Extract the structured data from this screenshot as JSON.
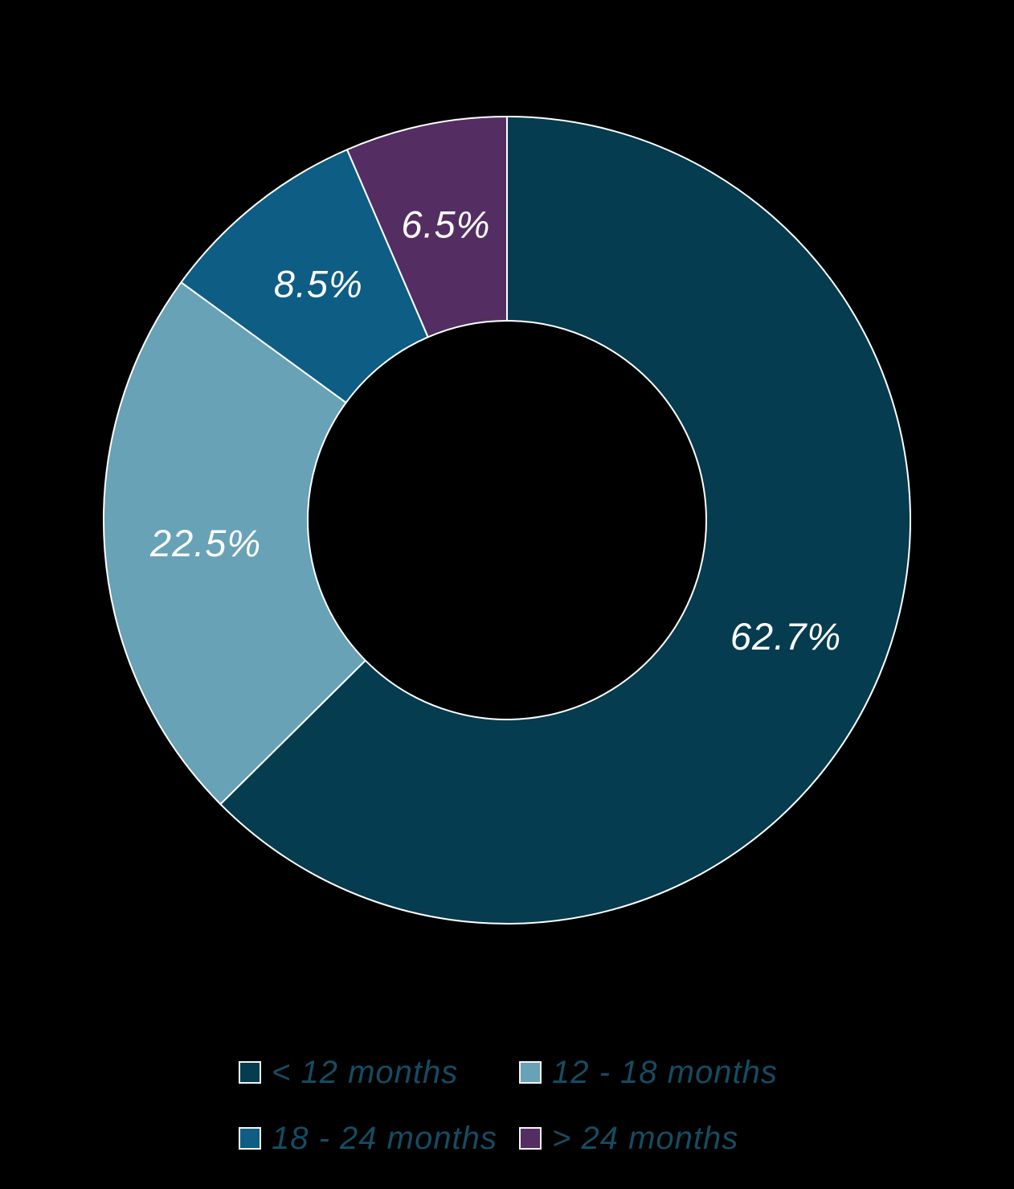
{
  "chart_data": {
    "type": "pie",
    "variant": "donut",
    "title": "",
    "categories": [
      "< 12 months",
      "12 - 18 months",
      "18 - 24 months",
      "> 24 months"
    ],
    "values": [
      62.7,
      22.5,
      8.5,
      6.5
    ],
    "labels": [
      "62.7%",
      "22.5%",
      "8.5%",
      "6.5%"
    ],
    "colors": [
      "#053c4f",
      "#67a2b7",
      "#0d5d85",
      "#542e62"
    ],
    "start_angle_deg": 0,
    "direction": "clockwise",
    "inner_radius_ratio": 0.49,
    "label_color": "#ffffff",
    "separator_color": "#ffffff",
    "legend_position": "bottom",
    "legend_text_color": "#154c62",
    "background_color": "#000000"
  }
}
